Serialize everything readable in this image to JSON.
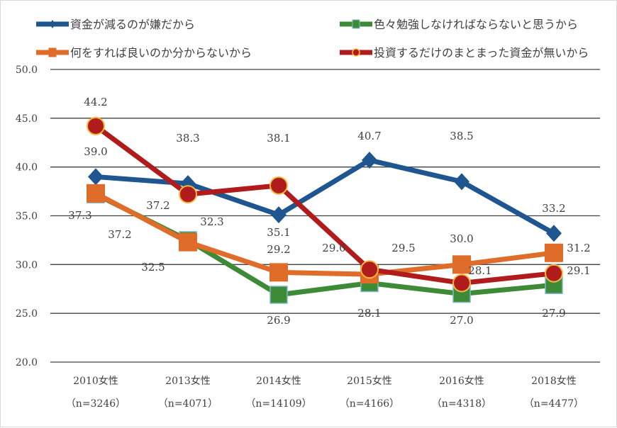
{
  "chart_data": {
    "type": "line",
    "categories": [
      "2010女性",
      "2013女性",
      "2014女性",
      "2015女性",
      "2016女性",
      "2018女性"
    ],
    "category_sublabels": [
      "（n=3246）",
      "（n=4071）",
      "（n=14109）",
      "（n=4166）",
      "（n=4318）",
      "（n=4477）"
    ],
    "ylim": [
      20,
      50
    ],
    "yticks": [
      "20.0",
      "25.0",
      "30.0",
      "35.0",
      "40.0",
      "45.0",
      "50.0"
    ],
    "grid": true,
    "legend_position": "top",
    "series": [
      {
        "name": "資金が減るのが嫌だから",
        "color": "#1f5690",
        "marker": "diamond",
        "values": [
          39.0,
          38.3,
          35.1,
          40.7,
          38.5,
          33.2
        ]
      },
      {
        "name": "色々勉強しなければならないと思うから",
        "color": "#3d8b37",
        "marker": "square",
        "values": [
          37.2,
          32.5,
          26.9,
          28.1,
          27.0,
          27.9
        ]
      },
      {
        "name": "何をすれば良いのか分からないから",
        "color": "#e06c2a",
        "marker": "square",
        "values": [
          37.3,
          32.3,
          29.2,
          29.0,
          30.0,
          31.2
        ]
      },
      {
        "name": "投資するだけのまとまった資金が無いから",
        "color": "#b01c1c",
        "marker": "circle",
        "values": [
          44.2,
          37.2,
          38.1,
          29.5,
          28.1,
          29.1
        ]
      }
    ]
  }
}
